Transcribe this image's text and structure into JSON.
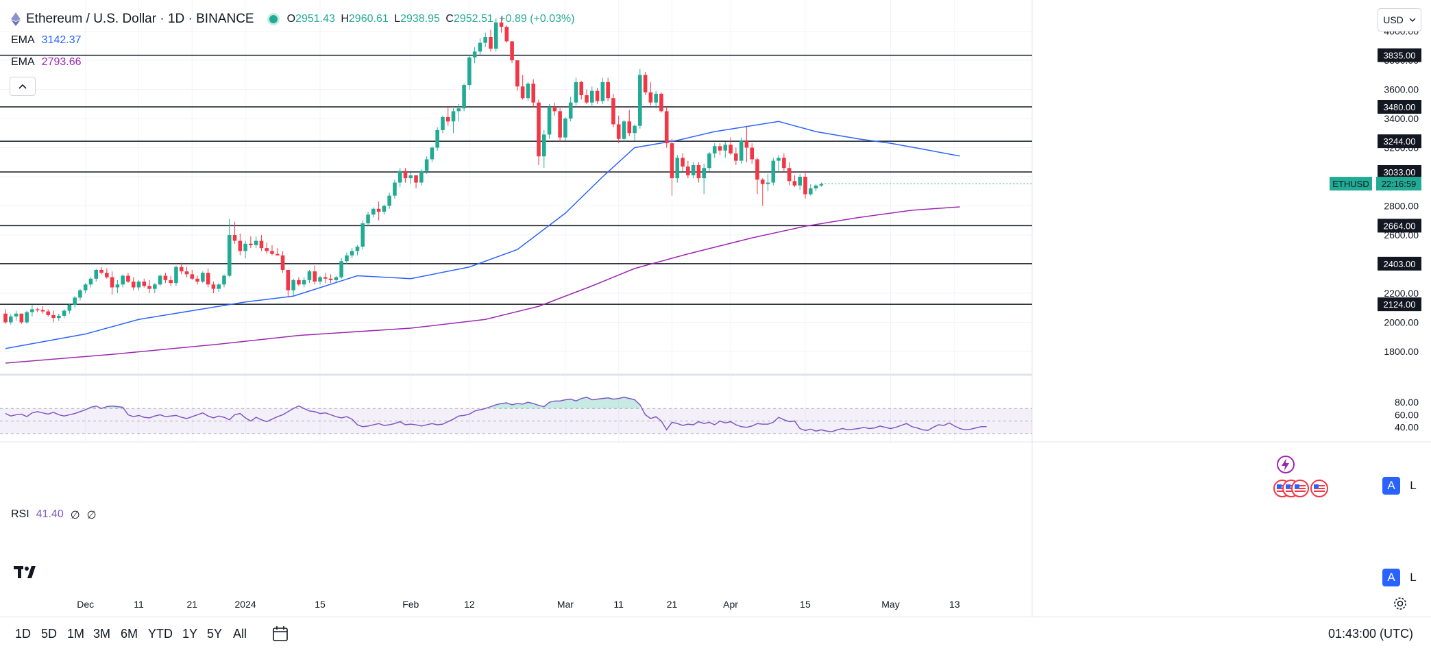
{
  "header": {
    "symbol_title": "Ethereum / U.S. Dollar · 1D · BINANCE",
    "open_label": "O",
    "open": "2951.43",
    "high_label": "H",
    "high": "2960.61",
    "low_label": "L",
    "low": "2938.95",
    "close_label": "C",
    "close": "2952.51",
    "change": "+0.89 (+0.03%)"
  },
  "indicators": {
    "ema1": {
      "label": "EMA",
      "value": "3142.37",
      "color": "#2962ff"
    },
    "ema2": {
      "label": "EMA",
      "value": "2793.66",
      "color": "#9c27b0"
    },
    "rsi": {
      "label": "RSI",
      "value": "41.40",
      "extra1": "∅",
      "extra2": "∅",
      "color": "#7e57c2"
    }
  },
  "currency": "USD",
  "scale_buttons": {
    "auto": "A",
    "log": "L"
  },
  "timeframes": [
    "1D",
    "5D",
    "1M",
    "3M",
    "6M",
    "YTD",
    "1Y",
    "5Y",
    "All"
  ],
  "clock": "01:43:00 (UTC)",
  "colors": {
    "up": "#22ab94",
    "down": "#f23645",
    "grid": "#f0f3fa"
  },
  "chart_data": {
    "type": "candlestick",
    "title": "Ethereum / U.S. Dollar · 1D · BINANCE",
    "symbol_label": "ETHUSD",
    "countdown": "22:16:59",
    "y_ticks": [
      1800,
      2000,
      2200,
      2400,
      2600,
      2800,
      3000,
      3200,
      3400,
      3600,
      3800,
      4000
    ],
    "y_range": [
      1720,
      4120
    ],
    "x_labels": [
      {
        "i": 15,
        "label": "Dec"
      },
      {
        "i": 25,
        "label": "11"
      },
      {
        "i": 35,
        "label": "21"
      },
      {
        "i": 45,
        "label": "2024"
      },
      {
        "i": 59,
        "label": "15"
      },
      {
        "i": 76,
        "label": "Feb"
      },
      {
        "i": 87,
        "label": "12"
      },
      {
        "i": 105,
        "label": "Mar"
      },
      {
        "i": 115,
        "label": "11"
      },
      {
        "i": 125,
        "label": "21"
      },
      {
        "i": 136,
        "label": "Apr"
      },
      {
        "i": 150,
        "label": "15"
      },
      {
        "i": 166,
        "label": "May"
      },
      {
        "i": 178,
        "label": "13"
      }
    ],
    "levels": [
      {
        "value": 3835,
        "label": "3835.00"
      },
      {
        "value": 3480,
        "label": "3480.00"
      },
      {
        "value": 3244,
        "label": "3244.00"
      },
      {
        "value": 3033,
        "label": "3033.00"
      },
      {
        "value": 2664,
        "label": "2664.00"
      },
      {
        "value": 2403,
        "label": "2403.00"
      },
      {
        "value": 2124,
        "label": "2124.00"
      }
    ],
    "last_price": 2952.51,
    "ema_fast": {
      "name": "EMA",
      "points": [
        [
          0,
          1820
        ],
        [
          15,
          1920
        ],
        [
          25,
          2020
        ],
        [
          35,
          2080
        ],
        [
          45,
          2140
        ],
        [
          54,
          2180
        ],
        [
          60,
          2250
        ],
        [
          66,
          2320
        ],
        [
          76,
          2300
        ],
        [
          87,
          2380
        ],
        [
          96,
          2500
        ],
        [
          105,
          2750
        ],
        [
          112,
          3000
        ],
        [
          118,
          3200
        ],
        [
          126,
          3250
        ],
        [
          133,
          3310
        ],
        [
          145,
          3380
        ],
        [
          152,
          3310
        ],
        [
          160,
          3260
        ],
        [
          166,
          3230
        ],
        [
          172,
          3190
        ],
        [
          179,
          3142
        ]
      ]
    },
    "ema_slow": {
      "name": "EMA",
      "points": [
        [
          0,
          1720
        ],
        [
          20,
          1780
        ],
        [
          40,
          1850
        ],
        [
          55,
          1910
        ],
        [
          76,
          1960
        ],
        [
          90,
          2020
        ],
        [
          100,
          2110
        ],
        [
          110,
          2250
        ],
        [
          118,
          2370
        ],
        [
          128,
          2470
        ],
        [
          140,
          2580
        ],
        [
          150,
          2660
        ],
        [
          160,
          2720
        ],
        [
          170,
          2770
        ],
        [
          179,
          2793
        ]
      ]
    },
    "rsi": {
      "range": [
        20,
        90
      ],
      "upper": 70,
      "lower": 30,
      "mid": 50,
      "ticks": [
        40,
        60,
        80
      ],
      "values": [
        62,
        58,
        60,
        61,
        57,
        63,
        65,
        63,
        61,
        64,
        60,
        58,
        60,
        62,
        65,
        68,
        72,
        74,
        70,
        73,
        74,
        73,
        72,
        60,
        57,
        59,
        56,
        55,
        58,
        60,
        57,
        58,
        59,
        56,
        54,
        57,
        60,
        63,
        58,
        55,
        58,
        56,
        52,
        60,
        62,
        55,
        50,
        56,
        52,
        49,
        53,
        57,
        60,
        65,
        70,
        74,
        70,
        66,
        65,
        62,
        63,
        60,
        57,
        55,
        57,
        53,
        44,
        41,
        42,
        44,
        46,
        43,
        44,
        46,
        49,
        44,
        45,
        44,
        42,
        44,
        46,
        44,
        45,
        49,
        53,
        58,
        59,
        61,
        66,
        68,
        70,
        73,
        76,
        78,
        79,
        76,
        78,
        77,
        80,
        78,
        75,
        73,
        80,
        82,
        82,
        84,
        85,
        82,
        86,
        88,
        84,
        85,
        86,
        87,
        85,
        86,
        88,
        86,
        84,
        76,
        60,
        54,
        57,
        50,
        36,
        48,
        46,
        43,
        45,
        44,
        49,
        46,
        48,
        44,
        50,
        47,
        49,
        44,
        41,
        40,
        42,
        46,
        45,
        45,
        48,
        56,
        52,
        49,
        50,
        38,
        35,
        37,
        34,
        36,
        34,
        33,
        36,
        38,
        36,
        37,
        38,
        40,
        38,
        39,
        42,
        40,
        38,
        40,
        43,
        46,
        41,
        39,
        36,
        35,
        40,
        44,
        43,
        47,
        42,
        38,
        36,
        37,
        39,
        41,
        41
      ]
    },
    "candles": [
      [
        2060,
        2090,
        1990,
        2000
      ],
      [
        2000,
        2055,
        1985,
        2040
      ],
      [
        2040,
        2080,
        2010,
        2060
      ],
      [
        2060,
        2050,
        1990,
        2000
      ],
      [
        2000,
        2080,
        1990,
        2070
      ],
      [
        2070,
        2120,
        2040,
        2090
      ],
      [
        2090,
        2100,
        2070,
        2085
      ],
      [
        2085,
        2110,
        2060,
        2075
      ],
      [
        2075,
        2090,
        2040,
        2050
      ],
      [
        2050,
        2080,
        2000,
        2030
      ],
      [
        2030,
        2060,
        2010,
        2045
      ],
      [
        2045,
        2090,
        2030,
        2080
      ],
      [
        2080,
        2130,
        2060,
        2120
      ],
      [
        2120,
        2180,
        2100,
        2170
      ],
      [
        2170,
        2230,
        2150,
        2220
      ],
      [
        2220,
        2270,
        2200,
        2260
      ],
      [
        2260,
        2310,
        2240,
        2300
      ],
      [
        2300,
        2370,
        2280,
        2360
      ],
      [
        2360,
        2380,
        2330,
        2340
      ],
      [
        2340,
        2370,
        2300,
        2310
      ],
      [
        2310,
        2350,
        2190,
        2240
      ],
      [
        2240,
        2290,
        2200,
        2260
      ],
      [
        2260,
        2330,
        2240,
        2320
      ],
      [
        2320,
        2340,
        2270,
        2280
      ],
      [
        2280,
        2310,
        2220,
        2240
      ],
      [
        2240,
        2290,
        2220,
        2280
      ],
      [
        2280,
        2300,
        2240,
        2250
      ],
      [
        2250,
        2290,
        2200,
        2230
      ],
      [
        2230,
        2270,
        2200,
        2260
      ],
      [
        2260,
        2330,
        2250,
        2320
      ],
      [
        2320,
        2340,
        2270,
        2290
      ],
      [
        2290,
        2320,
        2250,
        2270
      ],
      [
        2270,
        2390,
        2250,
        2380
      ],
      [
        2380,
        2410,
        2330,
        2350
      ],
      [
        2350,
        2380,
        2310,
        2330
      ],
      [
        2330,
        2360,
        2290,
        2300
      ],
      [
        2300,
        2320,
        2260,
        2280
      ],
      [
        2280,
        2350,
        2270,
        2340
      ],
      [
        2340,
        2370,
        2240,
        2260
      ],
      [
        2260,
        2280,
        2200,
        2230
      ],
      [
        2230,
        2270,
        2210,
        2260
      ],
      [
        2260,
        2330,
        2240,
        2320
      ],
      [
        2320,
        2710,
        2310,
        2600
      ],
      [
        2600,
        2690,
        2540,
        2560
      ],
      [
        2560,
        2610,
        2460,
        2490
      ],
      [
        2490,
        2560,
        2440,
        2540
      ],
      [
        2540,
        2590,
        2510,
        2530
      ],
      [
        2530,
        2590,
        2510,
        2560
      ],
      [
        2560,
        2600,
        2490,
        2510
      ],
      [
        2510,
        2550,
        2470,
        2490
      ],
      [
        2490,
        2530,
        2460,
        2470
      ],
      [
        2470,
        2510,
        2460,
        2460
      ],
      [
        2460,
        2490,
        2340,
        2360
      ],
      [
        2360,
        2360,
        2170,
        2220
      ],
      [
        2220,
        2300,
        2180,
        2290
      ],
      [
        2290,
        2310,
        2250,
        2260
      ],
      [
        2260,
        2310,
        2240,
        2290
      ],
      [
        2290,
        2360,
        2270,
        2350
      ],
      [
        2350,
        2390,
        2260,
        2280
      ],
      [
        2280,
        2320,
        2260,
        2310
      ],
      [
        2310,
        2340,
        2270,
        2300
      ],
      [
        2300,
        2330,
        2270,
        2290
      ],
      [
        2290,
        2320,
        2270,
        2310
      ],
      [
        2310,
        2440,
        2300,
        2420
      ],
      [
        2420,
        2480,
        2400,
        2460
      ],
      [
        2460,
        2510,
        2440,
        2490
      ],
      [
        2490,
        2530,
        2460,
        2520
      ],
      [
        2520,
        2700,
        2500,
        2680
      ],
      [
        2680,
        2760,
        2660,
        2740
      ],
      [
        2740,
        2790,
        2720,
        2780
      ],
      [
        2780,
        2830,
        2700,
        2760
      ],
      [
        2760,
        2810,
        2740,
        2800
      ],
      [
        2800,
        2890,
        2780,
        2870
      ],
      [
        2870,
        2980,
        2850,
        2960
      ],
      [
        2960,
        3060,
        2930,
        3040
      ],
      [
        3040,
        3060,
        2960,
        2990
      ],
      [
        2990,
        3030,
        2950,
        3010
      ],
      [
        3010,
        3010,
        2920,
        2960
      ],
      [
        2960,
        3050,
        2940,
        3040
      ],
      [
        3040,
        3140,
        3020,
        3120
      ],
      [
        3120,
        3210,
        3100,
        3200
      ],
      [
        3200,
        3340,
        3180,
        3320
      ],
      [
        3320,
        3420,
        3300,
        3410
      ],
      [
        3410,
        3480,
        3350,
        3380
      ],
      [
        3380,
        3470,
        3300,
        3450
      ],
      [
        3450,
        3500,
        3380,
        3470
      ],
      [
        3470,
        3640,
        3450,
        3630
      ],
      [
        3630,
        3840,
        3600,
        3820
      ],
      [
        3820,
        3890,
        3780,
        3860
      ],
      [
        3860,
        3950,
        3840,
        3920
      ],
      [
        3920,
        3990,
        3890,
        3960
      ],
      [
        3960,
        4010,
        3860,
        3880
      ],
      [
        3880,
        4090,
        3860,
        4060
      ],
      [
        4060,
        4100,
        3990,
        4030
      ],
      [
        4030,
        4040,
        3920,
        3930
      ],
      [
        3930,
        3930,
        3780,
        3800
      ],
      [
        3800,
        3800,
        3590,
        3620
      ],
      [
        3620,
        3700,
        3530,
        3540
      ],
      [
        3540,
        3650,
        3520,
        3640
      ],
      [
        3640,
        3670,
        3480,
        3510
      ],
      [
        3510,
        3530,
        3080,
        3140
      ],
      [
        3140,
        3320,
        3060,
        3290
      ],
      [
        3290,
        3500,
        3260,
        3480
      ],
      [
        3480,
        3510,
        3420,
        3450
      ],
      [
        3450,
        3470,
        3240,
        3270
      ],
      [
        3270,
        3410,
        3250,
        3400
      ],
      [
        3400,
        3550,
        3380,
        3510
      ],
      [
        3510,
        3680,
        3490,
        3650
      ],
      [
        3650,
        3660,
        3530,
        3560
      ],
      [
        3560,
        3600,
        3500,
        3510
      ],
      [
        3510,
        3620,
        3480,
        3590
      ],
      [
        3590,
        3610,
        3500,
        3520
      ],
      [
        3520,
        3680,
        3500,
        3650
      ],
      [
        3650,
        3680,
        3520,
        3540
      ],
      [
        3540,
        3570,
        3340,
        3360
      ],
      [
        3360,
        3420,
        3230,
        3260
      ],
      [
        3260,
        3390,
        3240,
        3380
      ],
      [
        3380,
        3460,
        3280,
        3300
      ],
      [
        3300,
        3360,
        3250,
        3350
      ],
      [
        3350,
        3740,
        3330,
        3700
      ],
      [
        3700,
        3720,
        3560,
        3580
      ],
      [
        3580,
        3650,
        3490,
        3510
      ],
      [
        3510,
        3590,
        3470,
        3570
      ],
      [
        3570,
        3580,
        3440,
        3450
      ],
      [
        3450,
        3480,
        3200,
        3230
      ],
      [
        3230,
        3260,
        2870,
        2990
      ],
      [
        2990,
        3150,
        2960,
        3130
      ],
      [
        3130,
        3160,
        3040,
        3070
      ],
      [
        3070,
        3110,
        2990,
        3010
      ],
      [
        3010,
        3100,
        2990,
        3080
      ],
      [
        3080,
        3100,
        2960,
        2990
      ],
      [
        2990,
        3090,
        2880,
        3060
      ],
      [
        3060,
        3170,
        3040,
        3160
      ],
      [
        3160,
        3230,
        3130,
        3210
      ],
      [
        3210,
        3230,
        3150,
        3180
      ],
      [
        3180,
        3240,
        3130,
        3220
      ],
      [
        3220,
        3270,
        3150,
        3160
      ],
      [
        3160,
        3200,
        3080,
        3110
      ],
      [
        3110,
        3270,
        3090,
        3250
      ],
      [
        3250,
        3350,
        3100,
        3200
      ],
      [
        3200,
        3230,
        3090,
        3120
      ],
      [
        3120,
        3130,
        2880,
        2980
      ],
      [
        2980,
        2990,
        2800,
        2950
      ],
      [
        2950,
        3020,
        2900,
        2960
      ],
      [
        2960,
        3130,
        2940,
        3110
      ],
      [
        3110,
        3150,
        3040,
        3130
      ],
      [
        3130,
        3160,
        3040,
        3060
      ],
      [
        3060,
        3100,
        2940,
        2970
      ],
      [
        2970,
        3010,
        2930,
        2940
      ],
      [
        2940,
        3020,
        2910,
        3000
      ],
      [
        3000,
        3040,
        2850,
        2880
      ],
      [
        2880,
        2950,
        2870,
        2920
      ],
      [
        2920,
        2950,
        2900,
        2940
      ],
      [
        2940,
        2960,
        2930,
        2950
      ]
    ]
  }
}
